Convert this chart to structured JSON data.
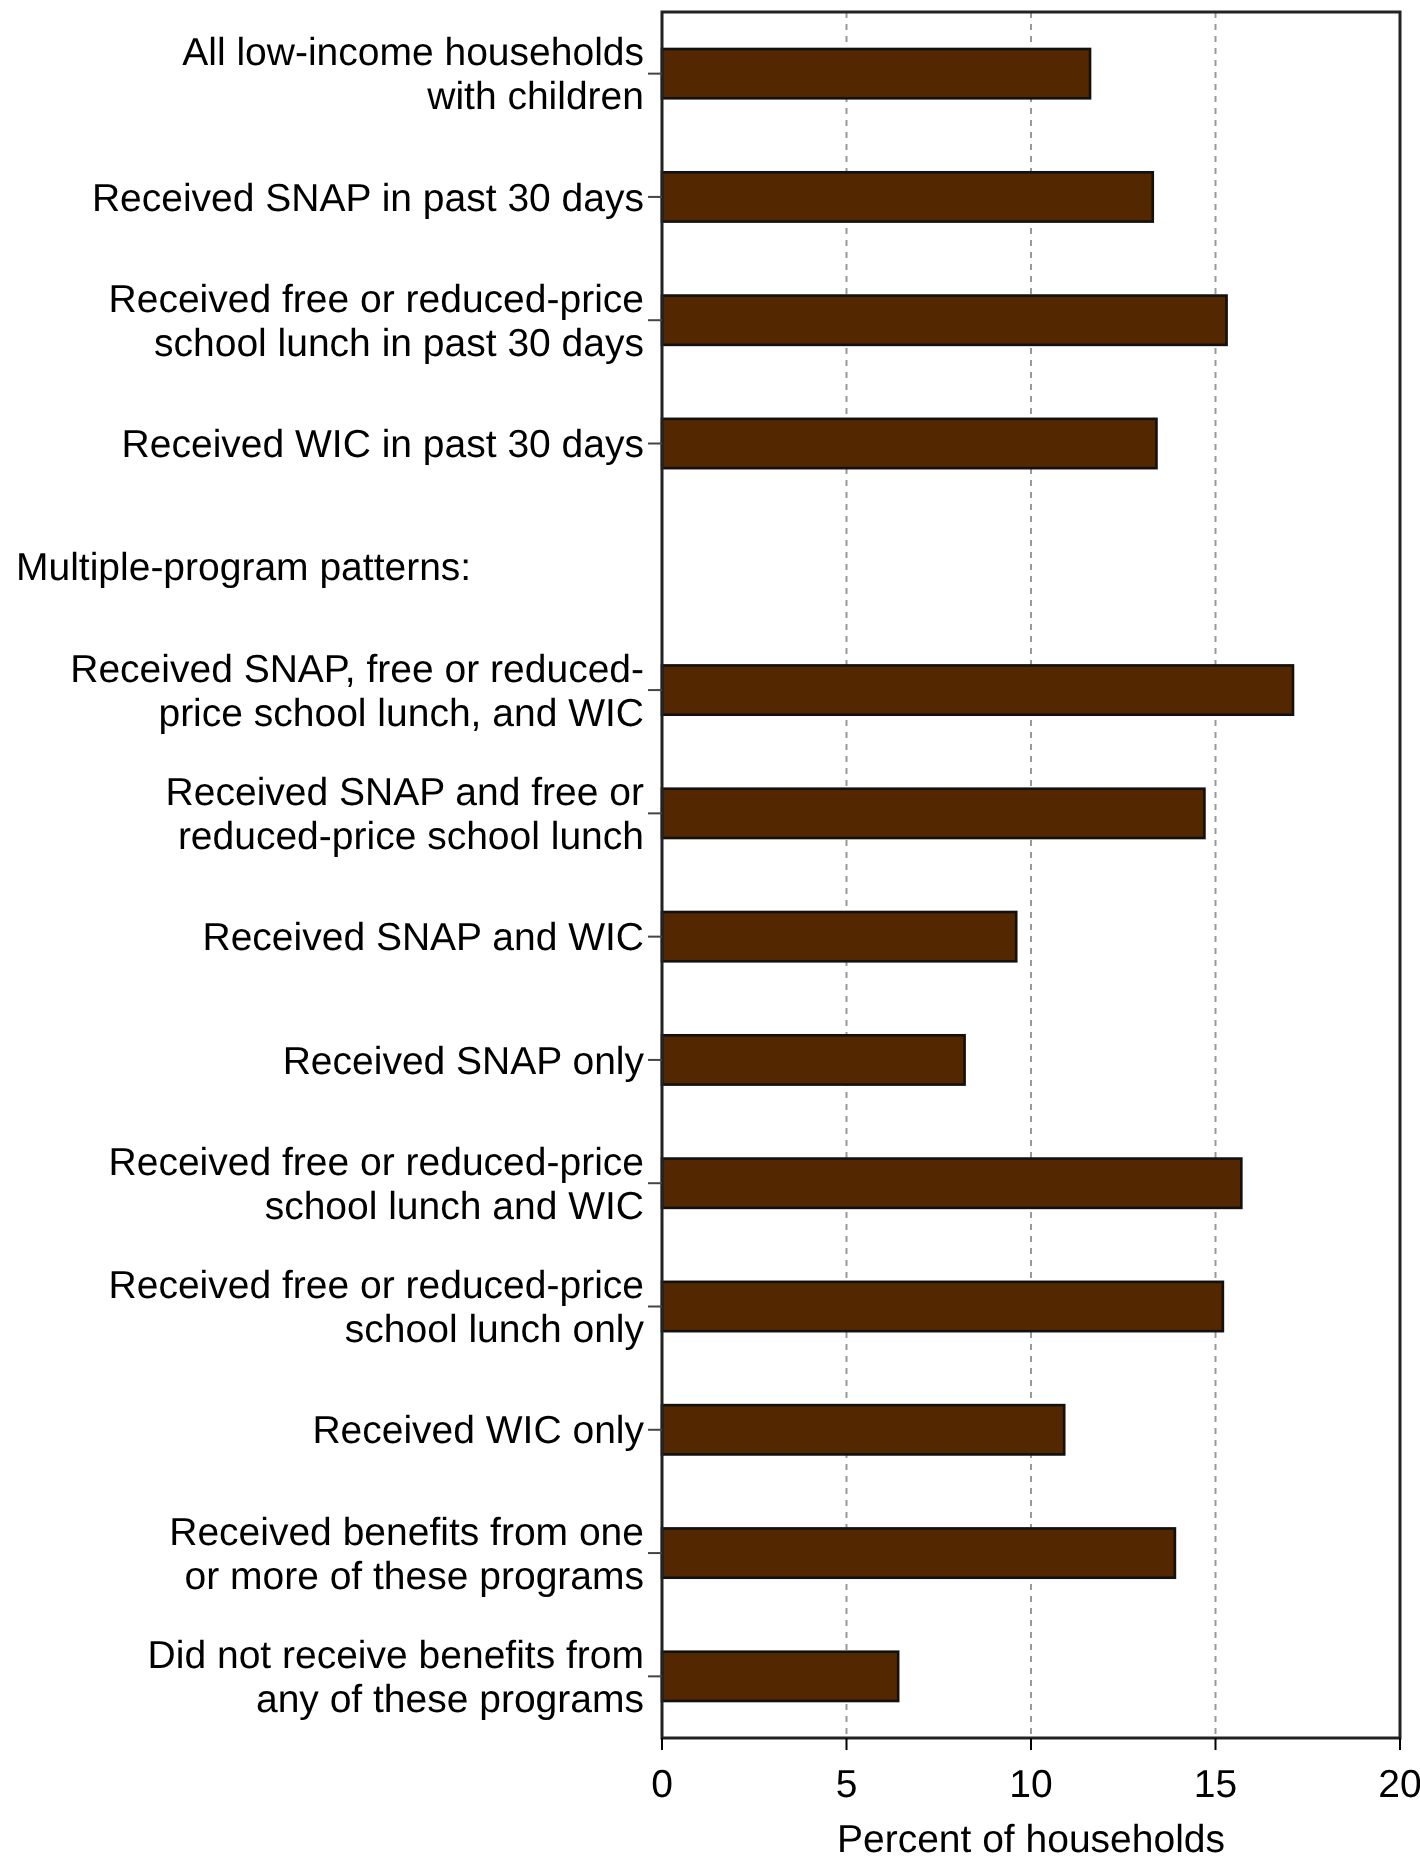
{
  "chart_data": {
    "type": "bar",
    "orientation": "horizontal",
    "xlabel": "Percent of households",
    "categories": [
      "All low-income households\nwith children",
      "Received SNAP in past 30 days",
      "Received free or reduced-price\nschool lunch in past 30 days",
      "Received WIC in past 30 days",
      null,
      "Received SNAP, free or reduced-\nprice school lunch, and WIC",
      "Received SNAP and free or\nreduced-price school lunch",
      "Received SNAP and WIC",
      "Received SNAP only",
      "Received free or reduced-price\nschool lunch and WIC",
      "Received free or reduced-price\nschool lunch only",
      "Received WIC only",
      "Received benefits from one\nor more of these programs",
      "Did not receive benefits from\nany of these programs"
    ],
    "values": [
      11.6,
      13.3,
      15.3,
      13.4,
      null,
      17.1,
      14.7,
      9.6,
      8.2,
      15.7,
      15.2,
      10.9,
      13.9,
      6.4
    ],
    "annotations": [
      "Multiple-program patterns:"
    ],
    "color": "#532700",
    "xlim": [
      0,
      20
    ],
    "xticks": [
      0,
      5,
      10,
      15,
      20
    ],
    "grid": "x"
  }
}
